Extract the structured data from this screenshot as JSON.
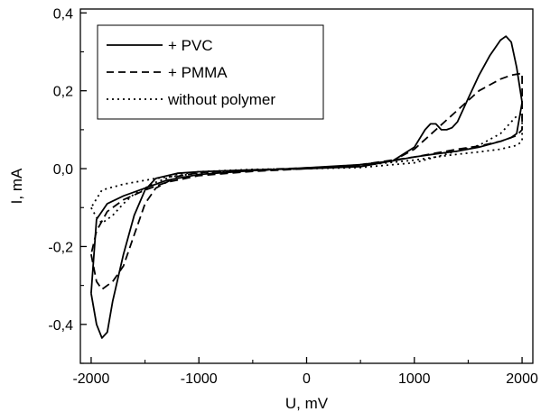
{
  "chart_data": {
    "type": "line",
    "title": "",
    "xlabel": "U, mV",
    "ylabel": "I, mA",
    "xlim": [
      -2100,
      2100
    ],
    "ylim": [
      -0.5,
      0.41
    ],
    "x_ticks": [
      -2000,
      -1000,
      0,
      1000,
      2000
    ],
    "x_tick_labels": [
      "-2000",
      "-1000",
      "0",
      "1000",
      "2000"
    ],
    "y_ticks": [
      -0.4,
      -0.2,
      0.0,
      0.2,
      0.4
    ],
    "y_tick_labels": [
      "-0,4",
      "-0,2",
      "0,0",
      "0,2",
      "0,4"
    ],
    "grid": false,
    "legend_position": "top-left",
    "series": [
      {
        "name": "+ PVC",
        "style": "solid",
        "points": [
          [
            -2000,
            -0.32
          ],
          [
            -1950,
            -0.4
          ],
          [
            -1900,
            -0.435
          ],
          [
            -1850,
            -0.42
          ],
          [
            -1800,
            -0.34
          ],
          [
            -1700,
            -0.22
          ],
          [
            -1600,
            -0.12
          ],
          [
            -1500,
            -0.055
          ],
          [
            -1400,
            -0.025
          ],
          [
            -1200,
            -0.012
          ],
          [
            -1000,
            -0.008
          ],
          [
            -500,
            -0.003
          ],
          [
            0,
            0.0
          ],
          [
            500,
            0.005
          ],
          [
            800,
            0.02
          ],
          [
            1000,
            0.055
          ],
          [
            1100,
            0.1
          ],
          [
            1150,
            0.115
          ],
          [
            1200,
            0.115
          ],
          [
            1250,
            0.1
          ],
          [
            1300,
            0.1
          ],
          [
            1350,
            0.105
          ],
          [
            1400,
            0.12
          ],
          [
            1500,
            0.18
          ],
          [
            1600,
            0.24
          ],
          [
            1700,
            0.29
          ],
          [
            1800,
            0.33
          ],
          [
            1850,
            0.34
          ],
          [
            1900,
            0.325
          ],
          [
            1950,
            0.26
          ],
          [
            2000,
            0.17
          ],
          [
            1950,
            0.09
          ],
          [
            1900,
            0.08
          ],
          [
            1800,
            0.07
          ],
          [
            1600,
            0.055
          ],
          [
            1400,
            0.045
          ],
          [
            1200,
            0.038
          ],
          [
            1000,
            0.03
          ],
          [
            800,
            0.02
          ],
          [
            500,
            0.01
          ],
          [
            0,
            0.002
          ],
          [
            -500,
            -0.005
          ],
          [
            -1000,
            -0.015
          ],
          [
            -1300,
            -0.03
          ],
          [
            -1500,
            -0.05
          ],
          [
            -1700,
            -0.07
          ],
          [
            -1850,
            -0.09
          ],
          [
            -1950,
            -0.13
          ],
          [
            -2000,
            -0.32
          ]
        ]
      },
      {
        "name": "+ PMMA",
        "style": "dashed",
        "points": [
          [
            -2000,
            -0.22
          ],
          [
            -1950,
            -0.29
          ],
          [
            -1900,
            -0.31
          ],
          [
            -1800,
            -0.29
          ],
          [
            -1700,
            -0.25
          ],
          [
            -1600,
            -0.17
          ],
          [
            -1500,
            -0.09
          ],
          [
            -1400,
            -0.05
          ],
          [
            -1200,
            -0.02
          ],
          [
            -1000,
            -0.01
          ],
          [
            -500,
            -0.003
          ],
          [
            0,
            0.002
          ],
          [
            500,
            0.008
          ],
          [
            800,
            0.02
          ],
          [
            1000,
            0.05
          ],
          [
            1200,
            0.1
          ],
          [
            1400,
            0.15
          ],
          [
            1600,
            0.2
          ],
          [
            1800,
            0.23
          ],
          [
            1900,
            0.24
          ],
          [
            2000,
            0.245
          ],
          [
            2000,
            0.1
          ],
          [
            1950,
            0.085
          ],
          [
            1800,
            0.07
          ],
          [
            1600,
            0.058
          ],
          [
            1400,
            0.05
          ],
          [
            1200,
            0.04
          ],
          [
            1000,
            0.03
          ],
          [
            500,
            0.01
          ],
          [
            0,
            0.0
          ],
          [
            -500,
            -0.007
          ],
          [
            -1000,
            -0.018
          ],
          [
            -1300,
            -0.035
          ],
          [
            -1500,
            -0.055
          ],
          [
            -1700,
            -0.08
          ],
          [
            -1850,
            -0.11
          ],
          [
            -1950,
            -0.16
          ],
          [
            -2000,
            -0.22
          ]
        ]
      },
      {
        "name": "without polymer",
        "style": "dotted",
        "points": [
          [
            -2000,
            -0.1
          ],
          [
            -1950,
            -0.125
          ],
          [
            -1900,
            -0.14
          ],
          [
            -1800,
            -0.12
          ],
          [
            -1700,
            -0.09
          ],
          [
            -1600,
            -0.065
          ],
          [
            -1400,
            -0.035
          ],
          [
            -1200,
            -0.015
          ],
          [
            -1000,
            -0.008
          ],
          [
            -500,
            -0.002
          ],
          [
            0,
            0.0
          ],
          [
            500,
            0.003
          ],
          [
            1000,
            0.015
          ],
          [
            1200,
            0.03
          ],
          [
            1400,
            0.045
          ],
          [
            1600,
            0.06
          ],
          [
            1800,
            0.09
          ],
          [
            1900,
            0.12
          ],
          [
            1950,
            0.135
          ],
          [
            2000,
            0.14
          ],
          [
            2000,
            0.07
          ],
          [
            1950,
            0.06
          ],
          [
            1800,
            0.05
          ],
          [
            1600,
            0.043
          ],
          [
            1400,
            0.037
          ],
          [
            1200,
            0.03
          ],
          [
            1000,
            0.022
          ],
          [
            500,
            0.008
          ],
          [
            0,
            0.0
          ],
          [
            -500,
            -0.005
          ],
          [
            -1000,
            -0.012
          ],
          [
            -1400,
            -0.025
          ],
          [
            -1700,
            -0.04
          ],
          [
            -1900,
            -0.055
          ],
          [
            -2000,
            -0.1
          ]
        ]
      }
    ]
  }
}
